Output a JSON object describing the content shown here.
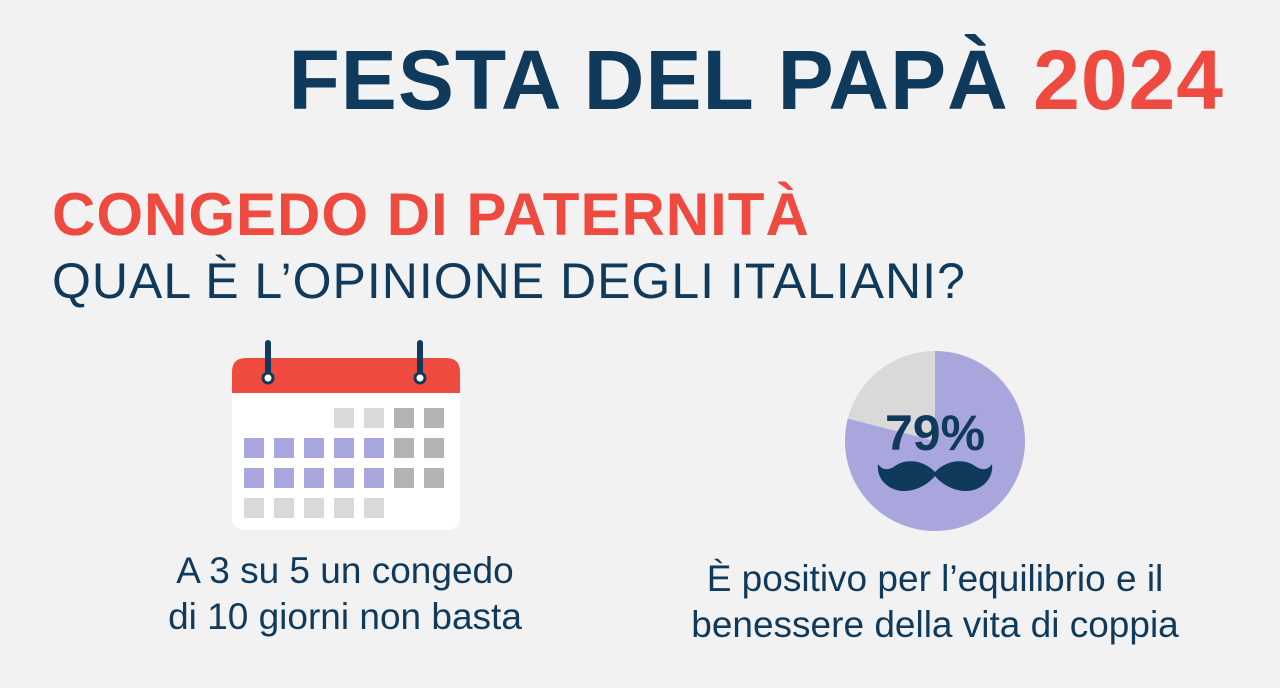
{
  "header": {
    "title_main": "FESTA DEL PAPÀ",
    "title_year": "2024"
  },
  "section": {
    "heading": "CONGEDO DI PATERNITÀ",
    "question": "QUAL È L’OPINIONE DEGLI ITALIANI?"
  },
  "stat_left": {
    "line1": "A 3 su 5 un congedo",
    "line2": "di 10 giorni non basta",
    "icon": "calendar-icon"
  },
  "stat_right": {
    "percent_label": "79%",
    "percent_value": 79,
    "line1": "È positivo per l’equilibrio e il",
    "line2": "benessere della vita di coppia",
    "icon": "mustache-icon"
  },
  "colors": {
    "navy": "#0f3a5c",
    "red": "#ef4a3f",
    "lavender": "#a9a6de",
    "gray_light": "#d9d9d9",
    "gray_dark": "#b3b3b3"
  }
}
